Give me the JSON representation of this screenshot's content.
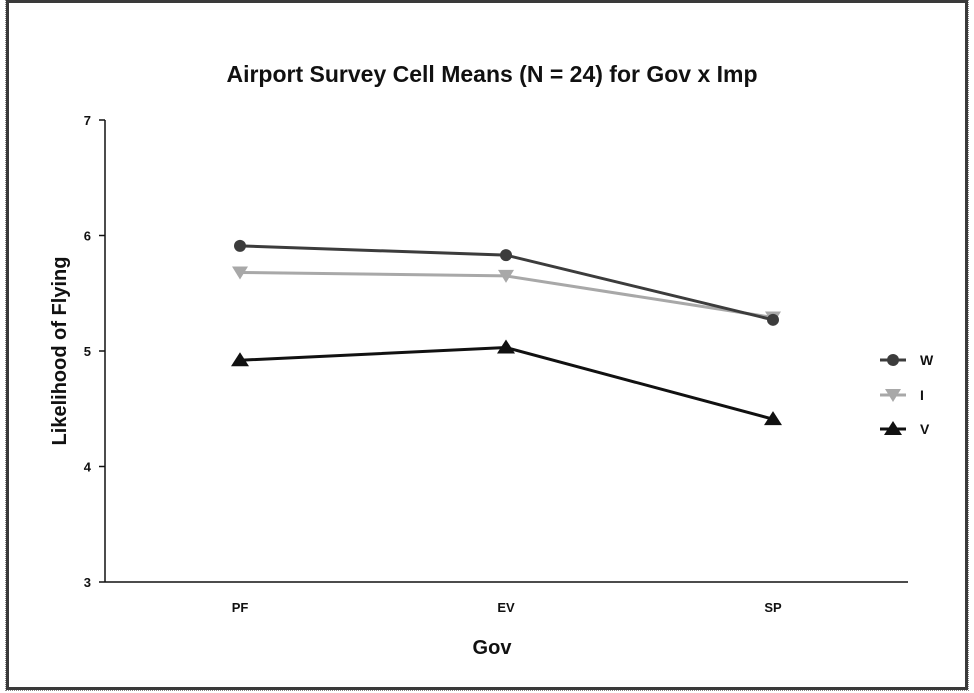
{
  "chart_data": {
    "type": "line",
    "title": "Airport Survey Cell Means (N = 24) for Gov x Imp",
    "xlabel": "Gov",
    "ylabel": "Likelihood of Flying",
    "categories": [
      "PF",
      "EV",
      "SP"
    ],
    "ylim": [
      3,
      7
    ],
    "yticks": [
      "3",
      "4",
      "5",
      "6",
      "7"
    ],
    "grid": false,
    "legend_position": "right",
    "series": [
      {
        "name": "W",
        "values": [
          5.91,
          5.83,
          5.27
        ],
        "color": "#3c3c3c",
        "marker": "circle"
      },
      {
        "name": "I",
        "values": [
          5.68,
          5.65,
          5.29
        ],
        "color": "#a8a8a8",
        "marker": "triangle-down"
      },
      {
        "name": "V",
        "values": [
          4.92,
          5.03,
          4.41
        ],
        "color": "#111111",
        "marker": "triangle-up"
      }
    ]
  }
}
